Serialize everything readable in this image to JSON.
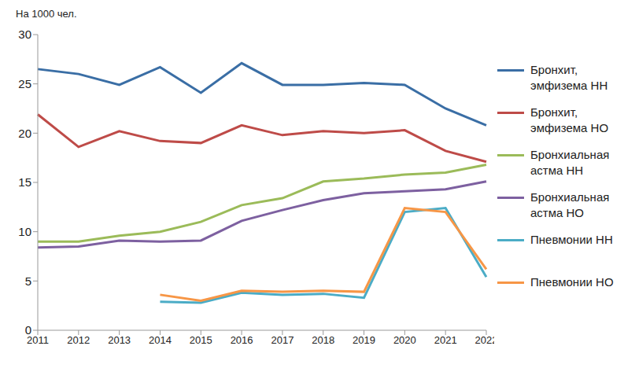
{
  "chart_data": {
    "type": "line",
    "y_label": "На 1000 чел.",
    "categories": [
      "2011",
      "2012",
      "2013",
      "2014",
      "2015",
      "2016",
      "2017",
      "2018",
      "2019",
      "2020",
      "2021",
      "2022"
    ],
    "ylim": [
      0,
      30
    ],
    "yticks": [
      0,
      5,
      10,
      15,
      20,
      25,
      30
    ],
    "grid": false,
    "legend": "right",
    "series": [
      {
        "name": "Бронхит, эмфизема НН",
        "color": "#3a6ea5",
        "values": [
          26.5,
          26.0,
          24.9,
          26.7,
          24.1,
          27.1,
          24.9,
          24.9,
          25.1,
          24.9,
          22.5,
          20.8
        ]
      },
      {
        "name": "Бронхит, эмфизема НО",
        "color": "#be4b48",
        "values": [
          21.9,
          18.6,
          20.2,
          19.2,
          19.0,
          20.8,
          19.8,
          20.2,
          20.0,
          20.3,
          18.2,
          17.1
        ]
      },
      {
        "name": "Бронхиальная астма НН",
        "color": "#9bbb59",
        "values": [
          9.0,
          9.0,
          9.6,
          10.0,
          11.0,
          12.7,
          13.4,
          15.1,
          15.4,
          15.8,
          16.0,
          16.8
        ]
      },
      {
        "name": "Бронхиальная астма НО",
        "color": "#7d60a0",
        "values": [
          8.4,
          8.5,
          9.1,
          9.0,
          9.1,
          11.1,
          12.2,
          13.2,
          13.9,
          14.1,
          14.3,
          15.1
        ]
      },
      {
        "name": "Пневмонии НН",
        "color": "#4bacc6",
        "values": [
          null,
          null,
          null,
          2.9,
          2.8,
          3.8,
          3.6,
          3.7,
          3.3,
          12.0,
          12.4,
          5.4
        ]
      },
      {
        "name": "Пневмонии НО",
        "color": "#f79646",
        "values": [
          null,
          null,
          null,
          3.6,
          3.0,
          4.0,
          3.9,
          4.0,
          3.9,
          12.4,
          12.0,
          6.2
        ]
      }
    ]
  }
}
